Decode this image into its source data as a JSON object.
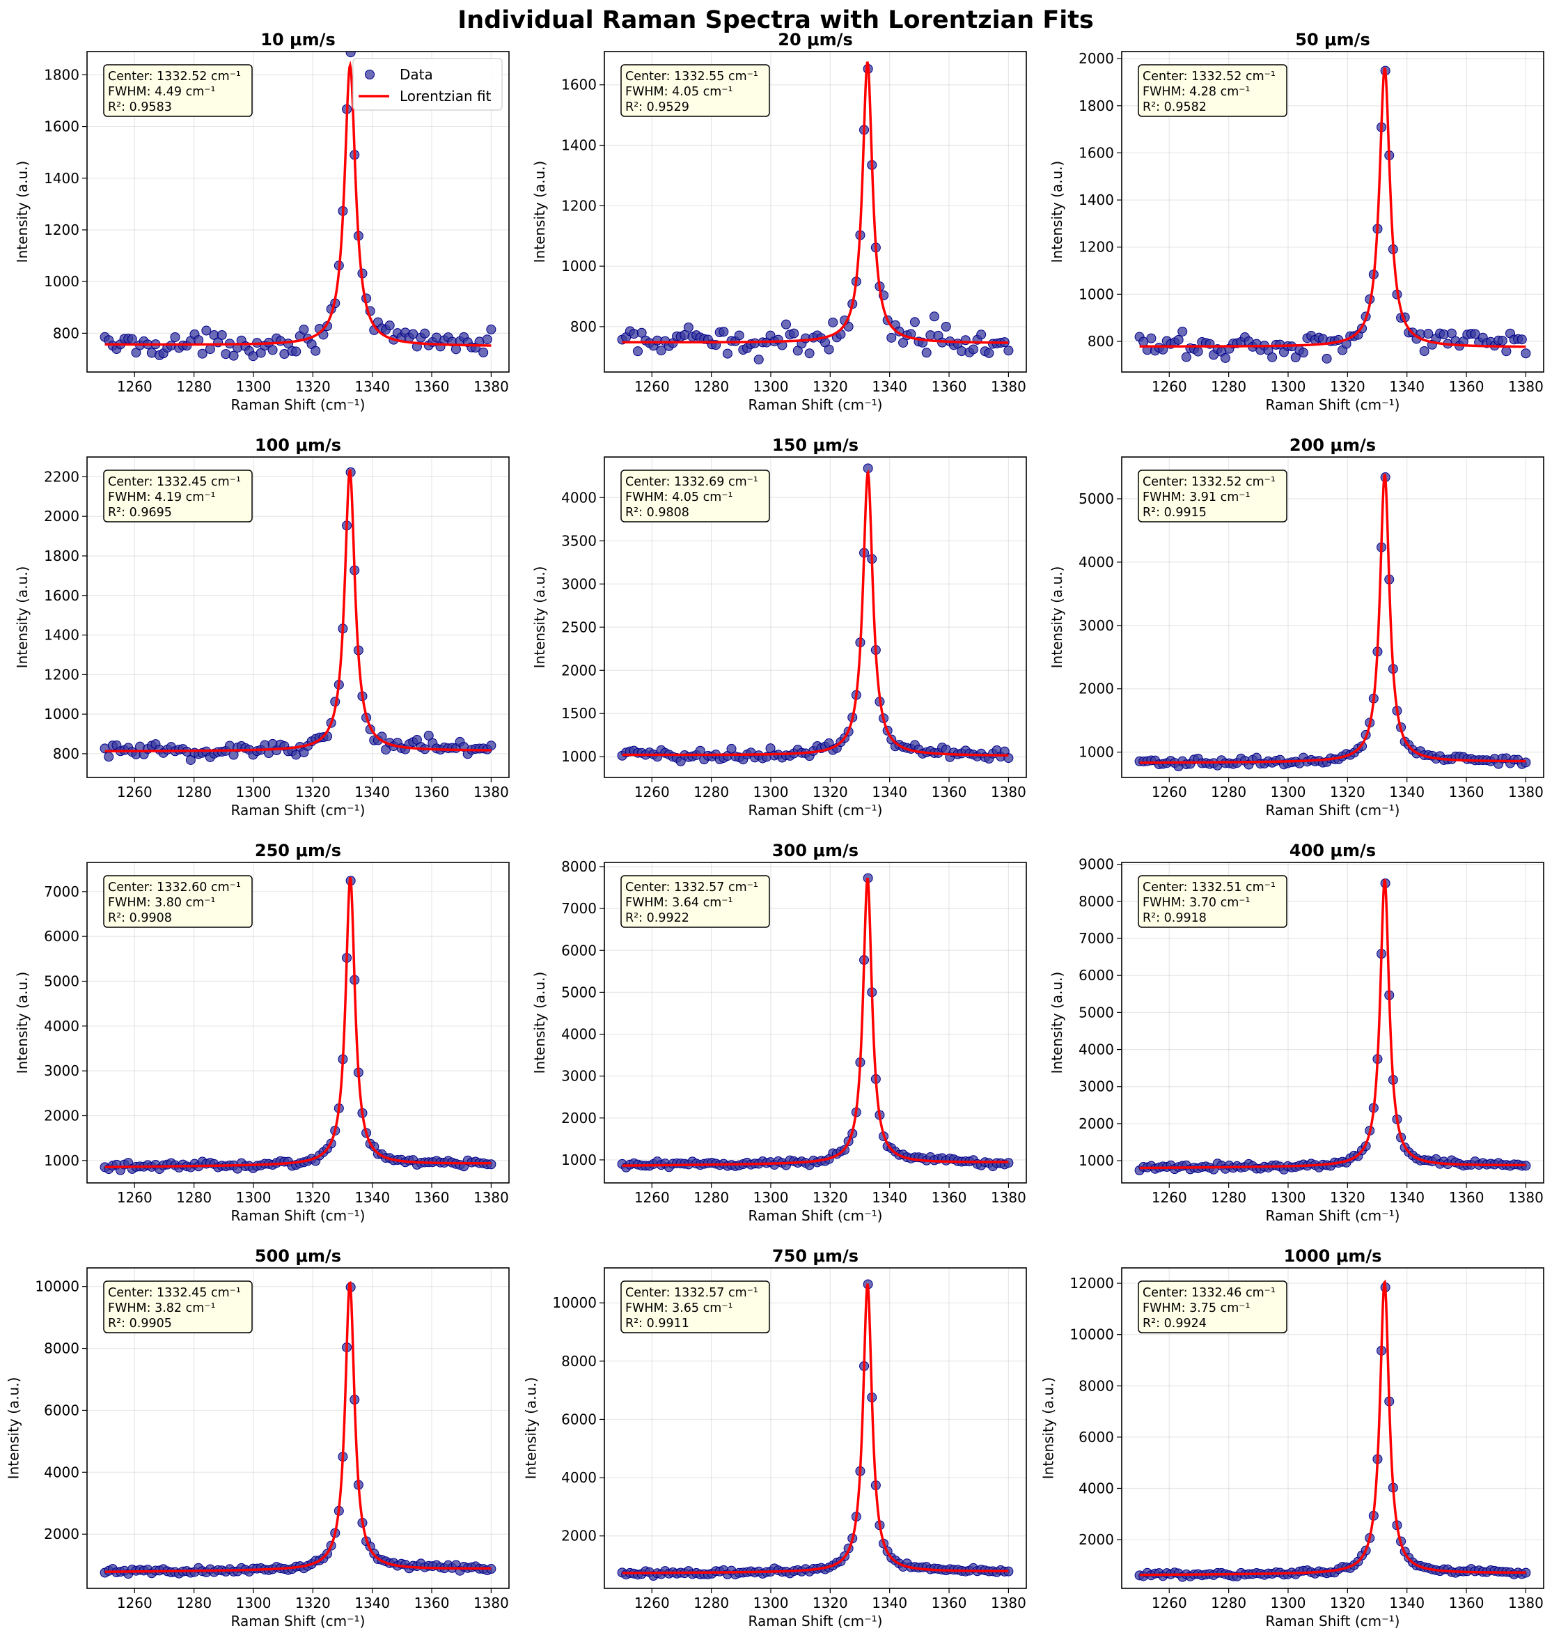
{
  "chart_data": {
    "title": "Individual Raman Spectra with Lorentzian Fits",
    "type": "scatter",
    "xlabel": "Raman Shift (cm⁻¹)",
    "ylabel": "Intensity (a.u.)",
    "xlim": [
      1244,
      1386
    ],
    "xticks": [
      1260,
      1280,
      1300,
      1320,
      1340,
      1360,
      1380
    ],
    "grid": true,
    "legend": {
      "position": "top-right",
      "entries": [
        "Data",
        "Lorentzian fit"
      ]
    },
    "colors": {
      "data_fill": "#3b3b9f",
      "data_edge": "#00008b",
      "fit": "#ff0000",
      "annotation_bg": "#ffffe8"
    },
    "x_range": [
      1250,
      1380
    ],
    "n_points": 100,
    "subplots": [
      {
        "title": "10 μm/s",
        "center": 1332.52,
        "fwhm": 4.49,
        "r2": 0.9583,
        "center_label": "Center: 1332.52 cm⁻¹",
        "fwhm_label": "FWHM: 4.49 cm⁻¹",
        "r2_label": "R²: 0.9583",
        "baseline": [
          756,
          750
        ],
        "peak_height": 1085,
        "noise": 25,
        "show_legend": true,
        "ylim": [
          650,
          1890
        ],
        "yticks": [
          800,
          1000,
          1200,
          1400,
          1600,
          1800
        ]
      },
      {
        "title": "20 μm/s",
        "center": 1332.55,
        "fwhm": 4.05,
        "r2": 0.9529,
        "center_label": "Center: 1332.55 cm⁻¹",
        "fwhm_label": "FWHM: 4.05 cm⁻¹",
        "r2_label": "R²: 0.9529",
        "baseline": [
          748,
          745
        ],
        "peak_height": 930,
        "noise": 25,
        "show_legend": false,
        "ylim": [
          650,
          1710
        ],
        "yticks": [
          800,
          1000,
          1200,
          1400,
          1600
        ]
      },
      {
        "title": "50 μm/s",
        "center": 1332.52,
        "fwhm": 4.28,
        "r2": 0.9582,
        "center_label": "Center: 1332.52 cm⁻¹",
        "fwhm_label": "FWHM: 4.28 cm⁻¹",
        "r2_label": "R²: 0.9582",
        "baseline": [
          778,
          775
        ],
        "peak_height": 1185,
        "noise": 30,
        "show_legend": false,
        "ylim": [
          670,
          2030
        ],
        "yticks": [
          800,
          1000,
          1200,
          1400,
          1600,
          1800,
          2000
        ]
      },
      {
        "title": "100 μm/s",
        "center": 1332.45,
        "fwhm": 4.19,
        "r2": 0.9695,
        "center_label": "Center: 1332.45 cm⁻¹",
        "fwhm_label": "FWHM: 4.19 cm⁻¹",
        "r2_label": "R²: 0.9695",
        "baseline": [
          812,
          815
        ],
        "peak_height": 1420,
        "noise": 25,
        "show_legend": false,
        "ylim": [
          680,
          2300
        ],
        "yticks": [
          800,
          1000,
          1200,
          1400,
          1600,
          1800,
          2000,
          2200
        ]
      },
      {
        "title": "150 μm/s",
        "center": 1332.69,
        "fwhm": 4.05,
        "r2": 0.9808,
        "center_label": "Center: 1332.69 cm⁻¹",
        "fwhm_label": "FWHM: 4.05 cm⁻¹",
        "r2_label": "R²: 0.9808",
        "baseline": [
          1020,
          1010
        ],
        "peak_height": 3280,
        "noise": 40,
        "show_legend": false,
        "ylim": [
          760,
          4470
        ],
        "yticks": [
          1000,
          1500,
          2000,
          2500,
          3000,
          3500,
          4000
        ]
      },
      {
        "title": "200 μm/s",
        "center": 1332.52,
        "fwhm": 3.91,
        "r2": 0.9915,
        "center_label": "Center: 1332.52 cm⁻¹",
        "fwhm_label": "FWHM: 3.91 cm⁻¹",
        "r2_label": "R²: 0.9915",
        "baseline": [
          830,
          850
        ],
        "peak_height": 4550,
        "noise": 30,
        "show_legend": false,
        "ylim": [
          600,
          5660
        ],
        "yticks": [
          1000,
          2000,
          3000,
          4000,
          5000
        ]
      },
      {
        "title": "250 μm/s",
        "center": 1332.6,
        "fwhm": 3.8,
        "r2": 0.9908,
        "center_label": "Center: 1332.60 cm⁻¹",
        "fwhm_label": "FWHM: 3.80 cm⁻¹",
        "r2_label": "R²: 0.9908",
        "baseline": [
          850,
          930
        ],
        "peak_height": 6420,
        "noise": 40,
        "show_legend": false,
        "ylim": [
          500,
          7650
        ],
        "yticks": [
          1000,
          2000,
          3000,
          4000,
          5000,
          6000,
          7000
        ]
      },
      {
        "title": "300 μm/s",
        "center": 1332.57,
        "fwhm": 3.64,
        "r2": 0.9922,
        "center_label": "Center: 1332.57 cm⁻¹",
        "fwhm_label": "FWHM: 3.64 cm⁻¹",
        "r2_label": "R²: 0.9922",
        "baseline": [
          860,
          940
        ],
        "peak_height": 6820,
        "noise": 40,
        "show_legend": false,
        "ylim": [
          450,
          8100
        ],
        "yticks": [
          1000,
          2000,
          3000,
          4000,
          5000,
          6000,
          7000,
          8000
        ]
      },
      {
        "title": "400 μm/s",
        "center": 1332.51,
        "fwhm": 3.7,
        "r2": 0.9918,
        "center_label": "Center: 1332.51 cm⁻¹",
        "fwhm_label": "FWHM: 3.70 cm⁻¹",
        "r2_label": "R²: 0.9918",
        "baseline": [
          800,
          870
        ],
        "peak_height": 7750,
        "noise": 40,
        "show_legend": false,
        "ylim": [
          400,
          9050
        ],
        "yticks": [
          1000,
          2000,
          3000,
          4000,
          5000,
          6000,
          7000,
          8000,
          9000
        ]
      },
      {
        "title": "500 μm/s",
        "center": 1332.45,
        "fwhm": 3.82,
        "r2": 0.9905,
        "center_label": "Center: 1332.45 cm⁻¹",
        "fwhm_label": "FWHM: 3.82 cm⁻¹",
        "r2_label": "R²: 0.9905",
        "baseline": [
          780,
          880
        ],
        "peak_height": 9300,
        "noise": 45,
        "show_legend": false,
        "ylim": [
          250,
          10600
        ],
        "yticks": [
          2000,
          4000,
          6000,
          8000,
          10000
        ]
      },
      {
        "title": "750 μm/s",
        "center": 1332.57,
        "fwhm": 3.65,
        "r2": 0.9911,
        "center_label": "Center: 1332.57 cm⁻¹",
        "fwhm_label": "FWHM: 3.65 cm⁻¹",
        "r2_label": "R²: 0.9911",
        "baseline": [
          720,
          780
        ],
        "peak_height": 9900,
        "noise": 45,
        "show_legend": false,
        "ylim": [
          200,
          11200
        ],
        "yticks": [
          2000,
          4000,
          6000,
          8000,
          10000
        ]
      },
      {
        "title": "1000 μm/s",
        "center": 1332.46,
        "fwhm": 3.75,
        "r2": 0.9924,
        "center_label": "Center: 1332.46 cm⁻¹",
        "fwhm_label": "FWHM: 3.75 cm⁻¹",
        "r2_label": "R²: 0.9924",
        "baseline": [
          620,
          700
        ],
        "peak_height": 11400,
        "noise": 45,
        "show_legend": false,
        "ylim": [
          100,
          12600
        ],
        "yticks": [
          2000,
          4000,
          6000,
          8000,
          10000,
          12000
        ]
      }
    ]
  }
}
